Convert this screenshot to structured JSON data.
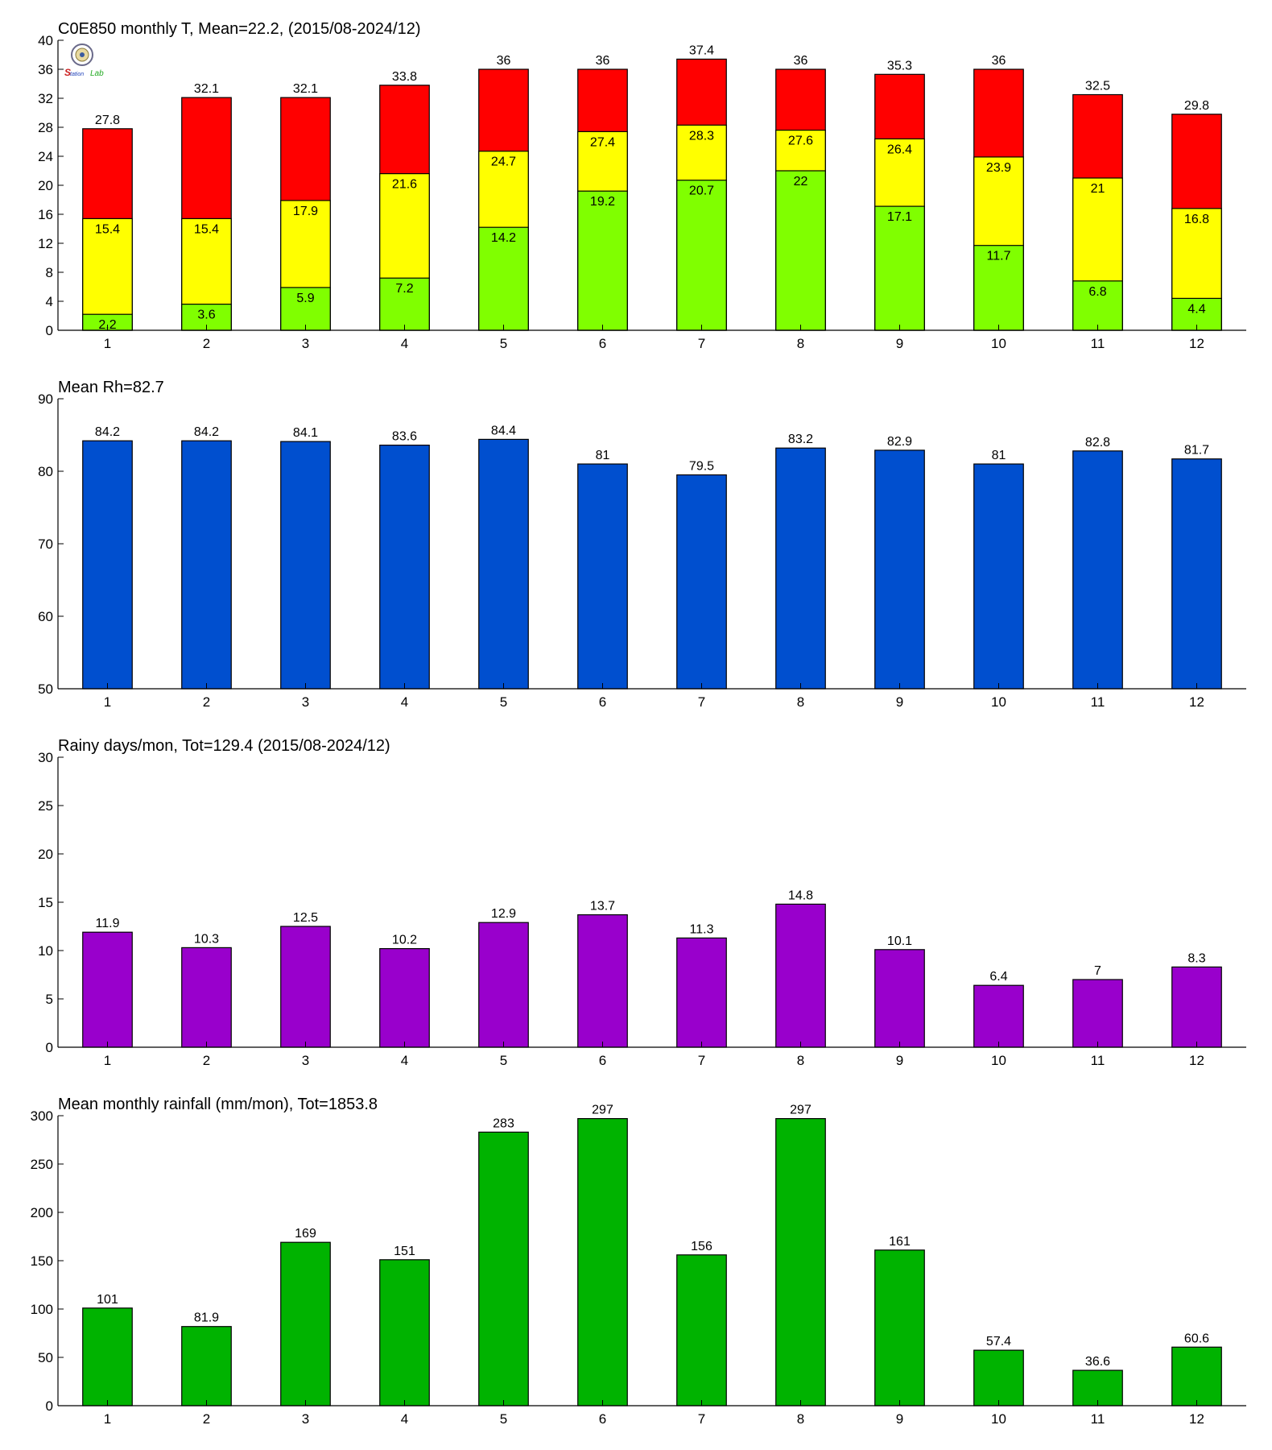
{
  "colors": {
    "tmax": "#ff0000",
    "tmean": "#ffff00",
    "tmin": "#80ff00",
    "rh": "#004fcf",
    "rainy_days": "#9900cc",
    "rainfall": "#00b300",
    "axis": "#000000",
    "background": "#ffffff"
  },
  "logo": {
    "text": "Lab",
    "icon": "station-seal-logo"
  },
  "chart_data": [
    {
      "type": "bar",
      "stacked_overlay": true,
      "title": "C0E850 monthly T, Mean=22.2, (2015/08-2024/12)",
      "xlabel": "",
      "ylabel": "",
      "categories": [
        "1",
        "2",
        "3",
        "4",
        "5",
        "6",
        "7",
        "8",
        "9",
        "10",
        "11",
        "12"
      ],
      "ylim": [
        0,
        40
      ],
      "yticks": [
        0,
        4,
        8,
        12,
        16,
        20,
        24,
        28,
        32,
        36,
        40
      ],
      "grid": false,
      "series": [
        {
          "key": "tmax",
          "values": [
            27.8,
            32.1,
            32.1,
            33.8,
            36,
            36,
            37.4,
            36,
            35.3,
            36,
            32.5,
            29.8
          ]
        },
        {
          "key": "tmean",
          "values": [
            15.4,
            15.4,
            17.9,
            21.6,
            24.7,
            27.4,
            28.3,
            27.6,
            26.4,
            23.9,
            21,
            16.8
          ]
        },
        {
          "key": "tmin",
          "values": [
            2.2,
            3.6,
            5.9,
            7.2,
            14.2,
            19.2,
            20.7,
            22,
            17.1,
            11.7,
            6.8,
            4.4
          ]
        }
      ]
    },
    {
      "type": "bar",
      "title": "Mean Rh=82.7",
      "xlabel": "",
      "ylabel": "",
      "categories": [
        "1",
        "2",
        "3",
        "4",
        "5",
        "6",
        "7",
        "8",
        "9",
        "10",
        "11",
        "12"
      ],
      "ylim": [
        50,
        90
      ],
      "yticks": [
        50,
        60,
        70,
        80,
        90
      ],
      "grid": false,
      "values": [
        84.2,
        84.2,
        84.1,
        83.6,
        84.4,
        81,
        79.5,
        83.2,
        82.9,
        81,
        82.8,
        81.7
      ],
      "labels": [
        "84.2",
        "84.2",
        "84.1",
        "83.6",
        "84.4",
        "81",
        "79.5",
        "83.2",
        "82.9",
        "81",
        "82.8",
        "81.7"
      ]
    },
    {
      "type": "bar",
      "title": "Rainy days/mon, Tot=129.4 (2015/08-2024/12)",
      "xlabel": "",
      "ylabel": "",
      "categories": [
        "1",
        "2",
        "3",
        "4",
        "5",
        "6",
        "7",
        "8",
        "9",
        "10",
        "11",
        "12"
      ],
      "ylim": [
        0,
        30
      ],
      "yticks": [
        0,
        5,
        10,
        15,
        20,
        25,
        30
      ],
      "grid": false,
      "values": [
        11.9,
        10.3,
        12.5,
        10.2,
        12.9,
        13.7,
        11.3,
        14.8,
        10.1,
        6.4,
        7,
        8.3
      ],
      "labels": [
        "11.9",
        "10.3",
        "12.5",
        "10.2",
        "12.9",
        "13.7",
        "11.3",
        "14.8",
        "10.1",
        "6.4",
        "7",
        "8.3"
      ]
    },
    {
      "type": "bar",
      "title": "Mean monthly rainfall (mm/mon), Tot=1853.8",
      "xlabel": "",
      "ylabel": "",
      "categories": [
        "1",
        "2",
        "3",
        "4",
        "5",
        "6",
        "7",
        "8",
        "9",
        "10",
        "11",
        "12"
      ],
      "ylim": [
        0,
        300
      ],
      "yticks": [
        0,
        50,
        100,
        150,
        200,
        250,
        300
      ],
      "grid": false,
      "values": [
        101,
        81.9,
        169,
        151,
        283,
        297,
        156,
        297,
        161,
        57.4,
        36.6,
        60.6
      ],
      "labels": [
        "101",
        "81.9",
        "169",
        "151",
        "283",
        "297",
        "156",
        "297",
        "161",
        "57.4",
        "36.6",
        "60.6"
      ]
    }
  ]
}
